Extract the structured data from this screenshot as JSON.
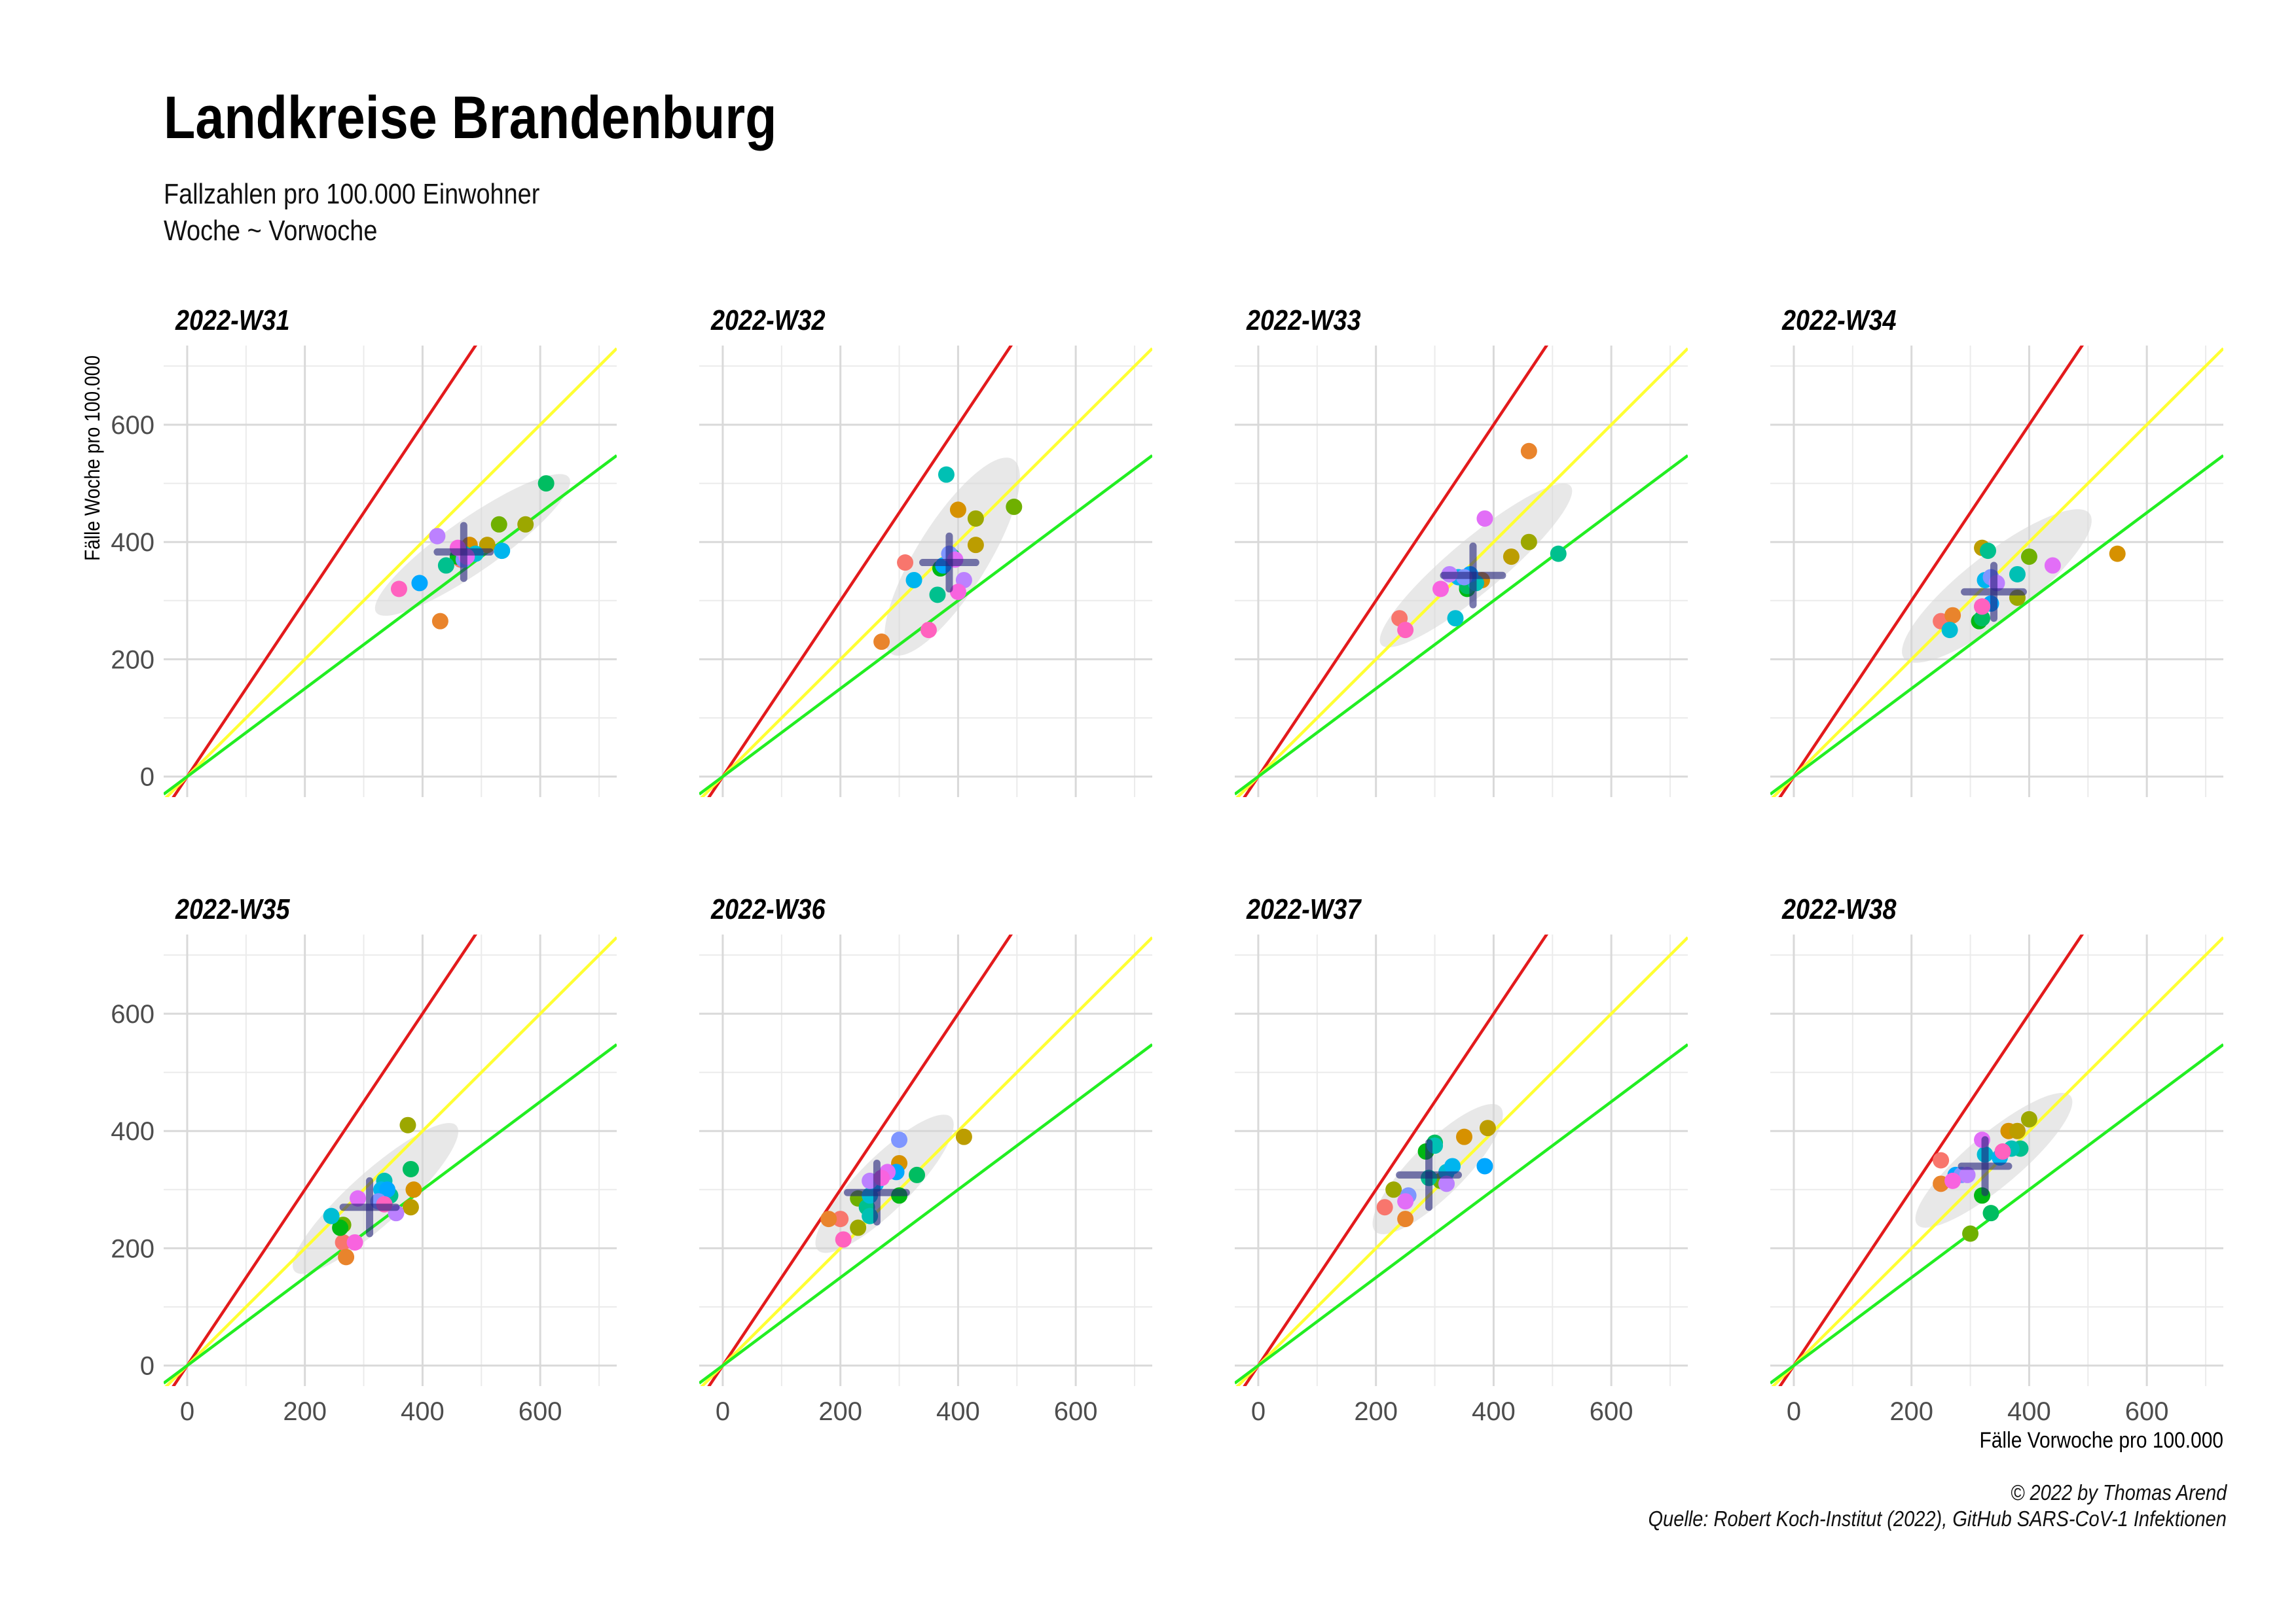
{
  "title": "Landkreise Brandenburg",
  "subtitle_line1": "Fallzahlen pro 100.000 Einwohner",
  "subtitle_line2": "Woche ~ Vorwoche",
  "caption_line1": "© 2022 by Thomas Arend",
  "caption_line2": "Quelle: Robert Koch-Institut (2022), GitHub SARS-CoV-1 Infektionen",
  "chart_data": {
    "type": "scatter",
    "xlabel": "Fälle Vorwoche pro 100.000",
    "ylabel": "Fälle Woche pro 100.000",
    "xlim": [
      -40,
      730
    ],
    "ylim": [
      -35,
      735
    ],
    "x_ticks": [
      0,
      200,
      400,
      600
    ],
    "y_ticks": [
      0,
      200,
      400,
      600
    ],
    "grid": true,
    "reference_lines": [
      {
        "slope": 1.5,
        "color": "#e31a1c"
      },
      {
        "slope": 1.0,
        "color": "#ffff33"
      },
      {
        "slope": 0.75,
        "color": "#22ee22"
      }
    ],
    "district_palette": [
      "#f8766d",
      "#e9842c",
      "#d69100",
      "#bc9d00",
      "#9ca700",
      "#6fb000",
      "#00b813",
      "#00bd61",
      "#00c08e",
      "#00c0b4",
      "#00bdd4",
      "#00b5ee",
      "#00a7ff",
      "#7f96ff",
      "#bc81ff",
      "#e26ef7",
      "#f863df",
      "#ff62bf"
    ],
    "panels": [
      {
        "label": "2022-W31",
        "points": [
          [
            465,
            370
          ],
          [
            430,
            265
          ],
          [
            480,
            395
          ],
          [
            510,
            395
          ],
          [
            575,
            430
          ],
          [
            530,
            430
          ],
          [
            460,
            375
          ],
          [
            610,
            500
          ],
          [
            440,
            360
          ],
          [
            470,
            380
          ],
          [
            490,
            380
          ],
          [
            535,
            385
          ],
          [
            395,
            330
          ],
          [
            470,
            370
          ],
          [
            425,
            410
          ],
          [
            475,
            375
          ],
          [
            460,
            390
          ],
          [
            360,
            320
          ]
        ],
        "mean": [
          470,
          383
        ],
        "sd": [
          45,
          45
        ],
        "ellipse": {
          "cx": 485,
          "cy": 395,
          "rx": 200,
          "ry": 45,
          "angle_deg": 35
        }
      },
      {
        "label": "2022-W32",
        "points": [
          [
            310,
            365
          ],
          [
            270,
            230
          ],
          [
            400,
            455
          ],
          [
            430,
            395
          ],
          [
            430,
            440
          ],
          [
            495,
            460
          ],
          [
            370,
            355
          ],
          [
            390,
            375
          ],
          [
            365,
            310
          ],
          [
            380,
            515
          ],
          [
            375,
            360
          ],
          [
            325,
            335
          ],
          [
            375,
            360
          ],
          [
            385,
            380
          ],
          [
            410,
            335
          ],
          [
            395,
            370
          ],
          [
            400,
            315
          ],
          [
            350,
            250
          ]
        ],
        "mean": [
          385,
          365
        ],
        "sd": [
          45,
          45
        ],
        "ellipse": {
          "cx": 390,
          "cy": 375,
          "rx": 195,
          "ry": 60,
          "angle_deg": 58
        }
      },
      {
        "label": "2022-W33",
        "points": [
          [
            240,
            270
          ],
          [
            460,
            555
          ],
          [
            380,
            335
          ],
          [
            430,
            375
          ],
          [
            460,
            400
          ],
          [
            360,
            330
          ],
          [
            355,
            320
          ],
          [
            355,
            325
          ],
          [
            510,
            380
          ],
          [
            370,
            330
          ],
          [
            335,
            270
          ],
          [
            340,
            340
          ],
          [
            360,
            345
          ],
          [
            350,
            340
          ],
          [
            325,
            345
          ],
          [
            385,
            440
          ],
          [
            310,
            320
          ],
          [
            250,
            250
          ]
        ],
        "mean": [
          365,
          343
        ],
        "sd": [
          50,
          50
        ],
        "ellipse": {
          "cx": 370,
          "cy": 360,
          "rx": 210,
          "ry": 45,
          "angle_deg": 40
        }
      },
      {
        "label": "2022-W34",
        "points": [
          [
            250,
            265
          ],
          [
            270,
            275
          ],
          [
            550,
            380
          ],
          [
            320,
            390
          ],
          [
            380,
            305
          ],
          [
            400,
            375
          ],
          [
            315,
            265
          ],
          [
            320,
            270
          ],
          [
            330,
            385
          ],
          [
            380,
            345
          ],
          [
            265,
            250
          ],
          [
            325,
            335
          ],
          [
            335,
            295
          ],
          [
            335,
            340
          ],
          [
            345,
            330
          ],
          [
            440,
            360
          ],
          [
            320,
            290
          ],
          [
            320,
            290
          ]
        ],
        "mean": [
          340,
          315
        ],
        "sd": [
          50,
          45
        ],
        "ellipse": {
          "cx": 345,
          "cy": 325,
          "rx": 200,
          "ry": 55,
          "angle_deg": 38
        }
      },
      {
        "label": "2022-W35",
        "points": [
          [
            265,
            210
          ],
          [
            270,
            185
          ],
          [
            385,
            300
          ],
          [
            380,
            270
          ],
          [
            375,
            410
          ],
          [
            265,
            240
          ],
          [
            260,
            235
          ],
          [
            380,
            335
          ],
          [
            345,
            290
          ],
          [
            335,
            315
          ],
          [
            245,
            255
          ],
          [
            330,
            300
          ],
          [
            340,
            300
          ],
          [
            325,
            280
          ],
          [
            355,
            260
          ],
          [
            290,
            285
          ],
          [
            285,
            210
          ],
          [
            335,
            275
          ]
        ],
        "mean": [
          310,
          270
        ],
        "sd": [
          45,
          45
        ],
        "ellipse": {
          "cx": 320,
          "cy": 285,
          "rx": 185,
          "ry": 45,
          "angle_deg": 42
        }
      },
      {
        "label": "2022-W36",
        "points": [
          [
            200,
            250
          ],
          [
            180,
            250
          ],
          [
            300,
            345
          ],
          [
            410,
            390
          ],
          [
            230,
            235
          ],
          [
            230,
            285
          ],
          [
            300,
            290
          ],
          [
            330,
            325
          ],
          [
            245,
            270
          ],
          [
            250,
            255
          ],
          [
            250,
            290
          ],
          [
            260,
            310
          ],
          [
            295,
            330
          ],
          [
            300,
            385
          ],
          [
            250,
            315
          ],
          [
            280,
            330
          ],
          [
            270,
            320
          ],
          [
            205,
            215
          ]
        ],
        "mean": [
          262,
          295
        ],
        "sd": [
          50,
          50
        ],
        "ellipse": {
          "cx": 275,
          "cy": 310,
          "rx": 160,
          "ry": 45,
          "angle_deg": 45
        }
      },
      {
        "label": "2022-W37",
        "points": [
          [
            215,
            270
          ],
          [
            250,
            250
          ],
          [
            350,
            390
          ],
          [
            390,
            405
          ],
          [
            230,
            300
          ],
          [
            310,
            315
          ],
          [
            285,
            365
          ],
          [
            300,
            380
          ],
          [
            290,
            320
          ],
          [
            300,
            375
          ],
          [
            320,
            330
          ],
          [
            330,
            340
          ],
          [
            385,
            340
          ],
          [
            255,
            290
          ],
          [
            320,
            310
          ],
          [
            250,
            280
          ]
        ],
        "mean": [
          290,
          325
        ],
        "sd": [
          50,
          55
        ],
        "ellipse": {
          "cx": 305,
          "cy": 335,
          "rx": 150,
          "ry": 45,
          "angle_deg": 45
        }
      },
      {
        "label": "2022-W38",
        "points": [
          [
            250,
            350
          ],
          [
            250,
            310
          ],
          [
            365,
            400
          ],
          [
            380,
            400
          ],
          [
            400,
            420
          ],
          [
            300,
            225
          ],
          [
            320,
            290
          ],
          [
            335,
            260
          ],
          [
            385,
            370
          ],
          [
            370,
            370
          ],
          [
            325,
            360
          ],
          [
            350,
            355
          ],
          [
            275,
            325
          ],
          [
            285,
            325
          ],
          [
            295,
            325
          ],
          [
            320,
            385
          ],
          [
            270,
            315
          ],
          [
            355,
            365
          ]
        ],
        "mean": [
          325,
          340
        ],
        "sd": [
          40,
          45
        ],
        "ellipse": {
          "cx": 340,
          "cy": 350,
          "rx": 170,
          "ry": 45,
          "angle_deg": 40
        }
      }
    ]
  }
}
